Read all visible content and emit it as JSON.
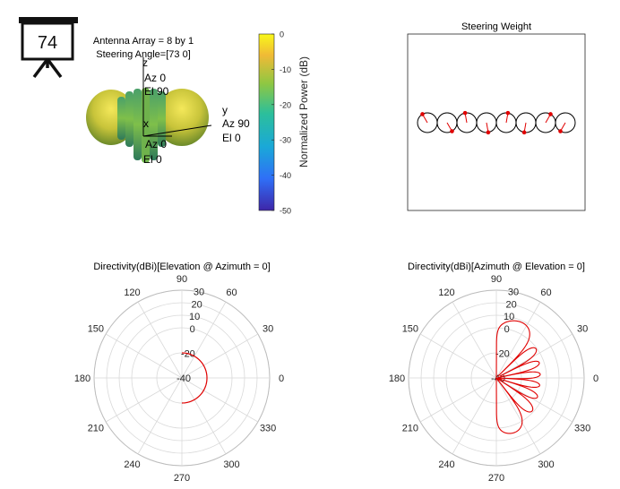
{
  "badge": {
    "number": "74",
    "icon": "presentation-board-icon"
  },
  "pattern3d": {
    "info_line1": "Antenna Array = 8 by 1",
    "info_line2": "Steering Angle=[73 0]",
    "axis_z": {
      "name": "z",
      "az": "Az 0",
      "el": "El 90"
    },
    "axis_y": {
      "name": "y",
      "az": "Az 90",
      "el": "El 0"
    },
    "axis_x": {
      "name": "x",
      "az": "Az 0",
      "el": "El 0"
    }
  },
  "colorbar": {
    "label": "Normalized Power (dB)",
    "ticks": [
      "0",
      "-10",
      "-20",
      "-30",
      "-40",
      "-50"
    ],
    "range": [
      -50,
      0
    ]
  },
  "chart_data": [
    {
      "type": "scatter",
      "title": "Steering Weight",
      "elements": 8,
      "phase_markers_deg": [
        120,
        -60,
        100,
        -80,
        80,
        -100,
        60,
        -120
      ]
    },
    {
      "type": "line",
      "title": "Directivity(dBi)[Elevation @ Azimuth = 0]",
      "angle_ticks": [
        "0",
        "30",
        "60",
        "90",
        "120",
        "150",
        "180",
        "210",
        "240",
        "270",
        "300",
        "330"
      ],
      "radial_ticks": [
        "30",
        "20",
        "10",
        "0",
        "-20",
        "-40"
      ],
      "radial_values": [
        30,
        20,
        10,
        0,
        -20,
        -40
      ],
      "series": [
        {
          "angle_deg": [
            -90,
            -60,
            -30,
            0,
            30,
            60,
            90
          ],
          "value_dbi": [
            -20,
            -20,
            -20,
            -20,
            -20,
            -20,
            -20
          ]
        }
      ]
    },
    {
      "type": "line",
      "title": "Directivity(dBi)[Azimuth @ Elevation = 0]",
      "angle_ticks": [
        "0",
        "30",
        "60",
        "90",
        "120",
        "150",
        "180",
        "210",
        "240",
        "270",
        "300",
        "330"
      ],
      "radial_ticks": [
        "30",
        "20",
        "10",
        "0",
        "-20",
        "-40"
      ],
      "radial_values": [
        30,
        20,
        10,
        0,
        -20,
        -40
      ],
      "peak_direction_deg": 73,
      "peak_dbi": 13
    }
  ]
}
